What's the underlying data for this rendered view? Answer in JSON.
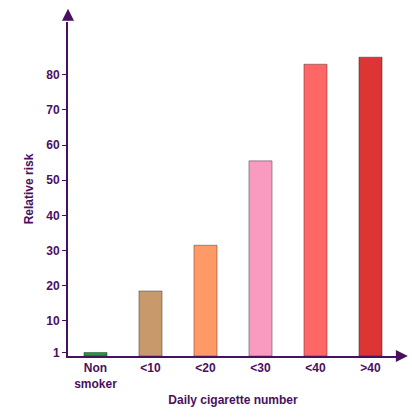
{
  "chart_data": {
    "type": "bar",
    "x_label": "Daily cigarette number",
    "y_label": "Relative risk",
    "categories": [
      "Non smoker",
      "<10",
      "<20",
      "<30",
      "<40",
      ">40"
    ],
    "values": [
      1,
      18.5,
      31.5,
      55.5,
      83,
      85
    ],
    "colors": [
      "#1e9a3c",
      "#c8996a",
      "#ff9966",
      "#f99ac0",
      "#ff6666",
      "#dd3535"
    ],
    "ylim": [
      0,
      95
    ],
    "yticks": [
      1,
      10,
      20,
      30,
      40,
      50,
      60,
      70,
      80
    ],
    "grid": false
  }
}
